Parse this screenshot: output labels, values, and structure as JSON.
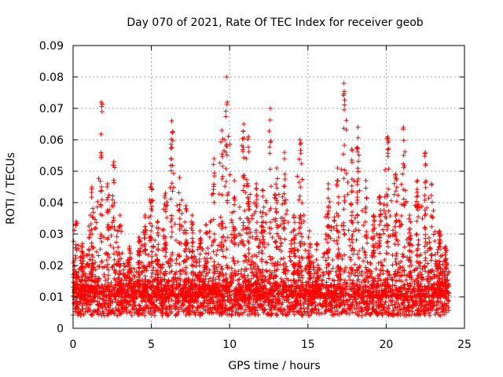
{
  "chart_data": {
    "type": "scatter",
    "title": "Day 070 of 2021, Rate Of TEC Index for receiver geob",
    "xlabel": "GPS time / hours",
    "ylabel": "ROTI / TECUs",
    "xlim": [
      0,
      25
    ],
    "ylim": [
      0,
      0.09
    ],
    "xticks": [
      0,
      5,
      10,
      15,
      20,
      25
    ],
    "xtick_labels": [
      "0",
      "5",
      "10",
      "15",
      "20",
      "25"
    ],
    "yticks": [
      0,
      0.01,
      0.02,
      0.03,
      0.04,
      0.05,
      0.06,
      0.07,
      0.08,
      0.09
    ],
    "ytick_labels": [
      "0",
      "0.01",
      "0.02",
      "0.03",
      "0.04",
      "0.05",
      "0.06",
      "0.07",
      "0.08",
      "0.09"
    ],
    "grid": true,
    "marker": "+",
    "color": "#ff0000",
    "series": [
      {
        "name": "ROTI",
        "x_range": [
          0,
          24
        ],
        "baseline_range": [
          0.004,
          0.014
        ],
        "peaks": [
          {
            "x": 0.2,
            "y": 0.034
          },
          {
            "x": 0.6,
            "y": 0.027
          },
          {
            "x": 1.2,
            "y": 0.045
          },
          {
            "x": 1.8,
            "y": 0.072
          },
          {
            "x": 2.2,
            "y": 0.046
          },
          {
            "x": 2.6,
            "y": 0.053
          },
          {
            "x": 3.0,
            "y": 0.036
          },
          {
            "x": 3.6,
            "y": 0.026
          },
          {
            "x": 4.2,
            "y": 0.029
          },
          {
            "x": 4.6,
            "y": 0.036
          },
          {
            "x": 5.0,
            "y": 0.046
          },
          {
            "x": 5.4,
            "y": 0.034
          },
          {
            "x": 5.9,
            "y": 0.043
          },
          {
            "x": 6.3,
            "y": 0.066
          },
          {
            "x": 6.8,
            "y": 0.048
          },
          {
            "x": 7.2,
            "y": 0.039
          },
          {
            "x": 7.6,
            "y": 0.036
          },
          {
            "x": 8.1,
            "y": 0.031
          },
          {
            "x": 8.5,
            "y": 0.033
          },
          {
            "x": 9.0,
            "y": 0.054
          },
          {
            "x": 9.5,
            "y": 0.063
          },
          {
            "x": 9.8,
            "y": 0.08
          },
          {
            "x": 10.3,
            "y": 0.047
          },
          {
            "x": 10.9,
            "y": 0.065
          },
          {
            "x": 11.2,
            "y": 0.061
          },
          {
            "x": 11.7,
            "y": 0.046
          },
          {
            "x": 12.1,
            "y": 0.044
          },
          {
            "x": 12.6,
            "y": 0.07
          },
          {
            "x": 13.0,
            "y": 0.051
          },
          {
            "x": 13.5,
            "y": 0.056
          },
          {
            "x": 14.1,
            "y": 0.036
          },
          {
            "x": 14.5,
            "y": 0.06
          },
          {
            "x": 15.1,
            "y": 0.031
          },
          {
            "x": 15.6,
            "y": 0.027
          },
          {
            "x": 16.3,
            "y": 0.046
          },
          {
            "x": 16.9,
            "y": 0.051
          },
          {
            "x": 17.3,
            "y": 0.078
          },
          {
            "x": 17.8,
            "y": 0.057
          },
          {
            "x": 18.2,
            "y": 0.064
          },
          {
            "x": 18.7,
            "y": 0.047
          },
          {
            "x": 19.2,
            "y": 0.036
          },
          {
            "x": 19.6,
            "y": 0.042
          },
          {
            "x": 20.1,
            "y": 0.061
          },
          {
            "x": 20.6,
            "y": 0.049
          },
          {
            "x": 21.1,
            "y": 0.064
          },
          {
            "x": 21.5,
            "y": 0.036
          },
          {
            "x": 22.0,
            "y": 0.047
          },
          {
            "x": 22.5,
            "y": 0.056
          },
          {
            "x": 22.9,
            "y": 0.046
          },
          {
            "x": 23.4,
            "y": 0.031
          },
          {
            "x": 23.8,
            "y": 0.026
          }
        ]
      }
    ]
  }
}
